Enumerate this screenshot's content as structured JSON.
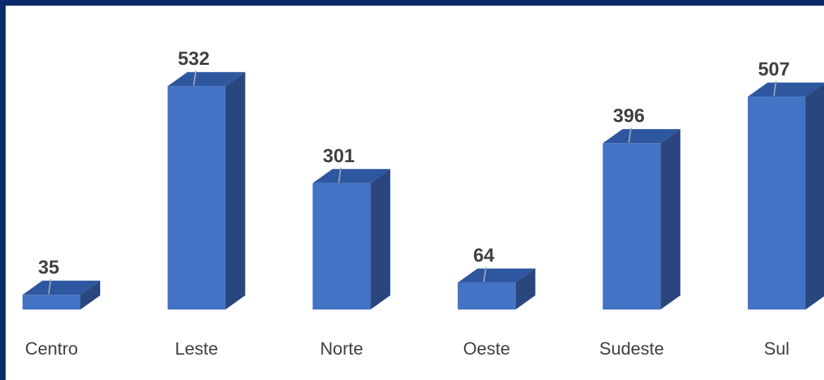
{
  "chart_data": {
    "type": "bar",
    "style": "3d-column",
    "title": "",
    "xlabel": "",
    "ylabel": "",
    "categories": [
      "Centro",
      "Leste",
      "Norte",
      "Oeste",
      "Sudeste",
      "Sul"
    ],
    "values": [
      35,
      532,
      301,
      64,
      396,
      507
    ],
    "data_labels": [
      "35",
      "532",
      "301",
      "64",
      "396",
      "507"
    ],
    "grid": false,
    "legend": "none",
    "colors": {
      "front": "#4472c4",
      "top": "#2e57a0",
      "side": "#29467e",
      "border": "#0b2a6b",
      "background": "#ffffff",
      "text": "#404040"
    }
  }
}
